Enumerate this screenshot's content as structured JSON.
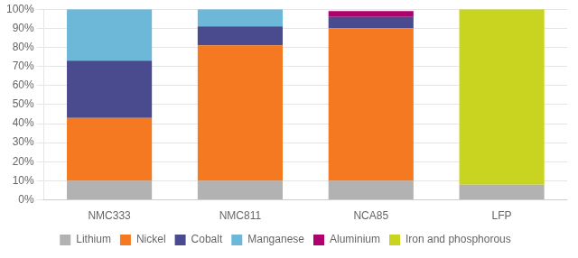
{
  "chart_data": {
    "type": "bar",
    "stacked": true,
    "categories": [
      "NMC333",
      "NMC811",
      "NCA85",
      "LFP"
    ],
    "series": [
      {
        "name": "Lithium",
        "color": "#b2b2b2",
        "values": [
          0.1,
          0.1,
          0.1,
          0.08
        ]
      },
      {
        "name": "Nickel",
        "color": "#f47920",
        "values": [
          0.33,
          0.71,
          0.8,
          0.0
        ]
      },
      {
        "name": "Cobalt",
        "color": "#4a4a8f",
        "values": [
          0.3,
          0.1,
          0.06,
          0.0
        ]
      },
      {
        "name": "Manganese",
        "color": "#6db8d8",
        "values": [
          0.27,
          0.09,
          0.0,
          0.0
        ]
      },
      {
        "name": "Aluminium",
        "color": "#b0006f",
        "values": [
          0.0,
          0.0,
          0.03,
          0.0
        ]
      },
      {
        "name": "Iron and phosphorous",
        "color": "#c8d420",
        "values": [
          0.0,
          0.0,
          0.0,
          0.92
        ]
      }
    ],
    "ylim": [
      0,
      1.0
    ],
    "yticks": [
      {
        "value": 0.0,
        "label": "0%"
      },
      {
        "value": 0.1,
        "label": "10%"
      },
      {
        "value": 0.2,
        "label": "20%"
      },
      {
        "value": 0.3,
        "label": "30%"
      },
      {
        "value": 0.4,
        "label": "40%"
      },
      {
        "value": 0.5,
        "label": "50%"
      },
      {
        "value": 0.6,
        "label": "60%"
      },
      {
        "value": 0.7,
        "label": "70%"
      },
      {
        "value": 0.8,
        "label": "80%"
      },
      {
        "value": 0.9,
        "label": "90%"
      },
      {
        "value": 1.0,
        "label": "100%"
      }
    ],
    "grid": true,
    "legend": "bottom"
  }
}
